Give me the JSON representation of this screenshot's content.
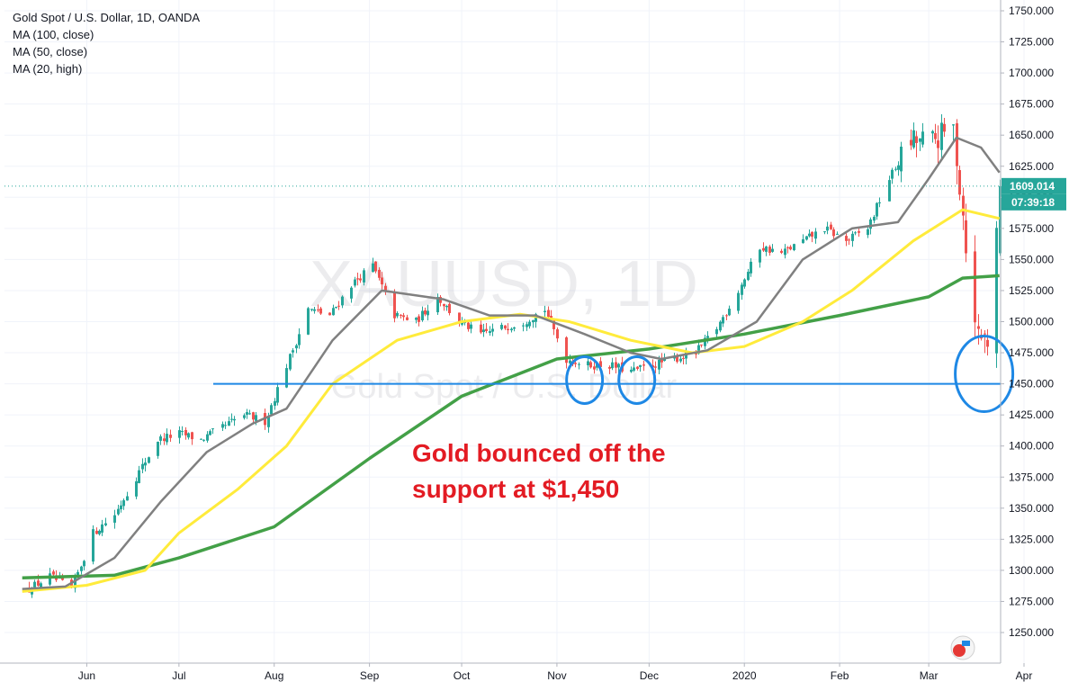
{
  "chart_data": {
    "type": "candlestick",
    "legend": {
      "title": "Gold Spot / U.S. Dollar, 1D, OANDA",
      "indicators": [
        "MA (100, close)",
        "MA (50, close)",
        "MA (20, high)"
      ]
    },
    "watermark": {
      "symbol": "XAUUSD, 1D",
      "name": "Gold Spot / U.S. Dollar"
    },
    "annotation": [
      "Gold bounced off the",
      "support at $1,450"
    ],
    "x_labels": [
      "Jun",
      "Jul",
      "Aug",
      "Sep",
      "Oct",
      "Nov",
      "Dec",
      "2020",
      "Feb",
      "Mar",
      "Apr"
    ],
    "y_ticks": [
      "1250.000",
      "1275.000",
      "1300.000",
      "1325.000",
      "1350.000",
      "1375.000",
      "1400.000",
      "1425.000",
      "1450.000",
      "1475.000",
      "1500.000",
      "1525.000",
      "1550.000",
      "1575.000",
      "1600.000",
      "1625.000",
      "1650.000",
      "1675.000",
      "1700.000",
      "1725.000",
      "1750.000"
    ],
    "y_range": [
      1230,
      1755
    ],
    "last_price": {
      "value": 1609.014,
      "label": "1609.014",
      "countdown": "07:39:18"
    },
    "support_level": 1450,
    "colors": {
      "up": "#26a69a",
      "down": "#ef5350",
      "ma100": "#43a047",
      "ma50": "#ffeb3b",
      "ma20": "#808080",
      "support": "#1e88e5",
      "circle": "#1e88e5",
      "annotation": "#e31b23"
    },
    "anchors": [
      [
        "2019-05-13",
        1285
      ],
      [
        "2019-05-20",
        1295
      ],
      [
        "2019-05-27",
        1285
      ],
      [
        "2019-06-03",
        1330
      ],
      [
        "2019-06-10",
        1345
      ],
      [
        "2019-06-17",
        1375
      ],
      [
        "2019-06-24",
        1405
      ],
      [
        "2019-07-01",
        1410
      ],
      [
        "2019-07-08",
        1405
      ],
      [
        "2019-07-15",
        1415
      ],
      [
        "2019-07-22",
        1425
      ],
      [
        "2019-07-29",
        1420
      ],
      [
        "2019-08-05",
        1465
      ],
      [
        "2019-08-12",
        1510
      ],
      [
        "2019-08-19",
        1505
      ],
      [
        "2019-08-26",
        1530
      ],
      [
        "2019-09-02",
        1545
      ],
      [
        "2019-09-09",
        1505
      ],
      [
        "2019-09-16",
        1500
      ],
      [
        "2019-09-23",
        1520
      ],
      [
        "2019-09-30",
        1500
      ],
      [
        "2019-10-07",
        1490
      ],
      [
        "2019-10-14",
        1495
      ],
      [
        "2019-10-21",
        1500
      ],
      [
        "2019-10-28",
        1510
      ],
      [
        "2019-11-04",
        1470
      ],
      [
        "2019-11-11",
        1465
      ],
      [
        "2019-11-18",
        1465
      ],
      [
        "2019-11-25",
        1460
      ],
      [
        "2019-12-02",
        1465
      ],
      [
        "2019-12-09",
        1470
      ],
      [
        "2019-12-16",
        1475
      ],
      [
        "2019-12-23",
        1495
      ],
      [
        "2019-12-30",
        1525
      ],
      [
        "2020-01-06",
        1560
      ],
      [
        "2020-01-13",
        1555
      ],
      [
        "2020-01-20",
        1565
      ],
      [
        "2020-01-27",
        1575
      ],
      [
        "2020-02-03",
        1565
      ],
      [
        "2020-02-10",
        1575
      ],
      [
        "2020-02-17",
        1615
      ],
      [
        "2020-02-24",
        1645
      ],
      [
        "2020-03-02",
        1645
      ],
      [
        "2020-03-09",
        1655
      ],
      [
        "2020-03-16",
        1495
      ],
      [
        "2020-03-20",
        1485
      ],
      [
        "2020-03-24",
        1609
      ]
    ]
  }
}
